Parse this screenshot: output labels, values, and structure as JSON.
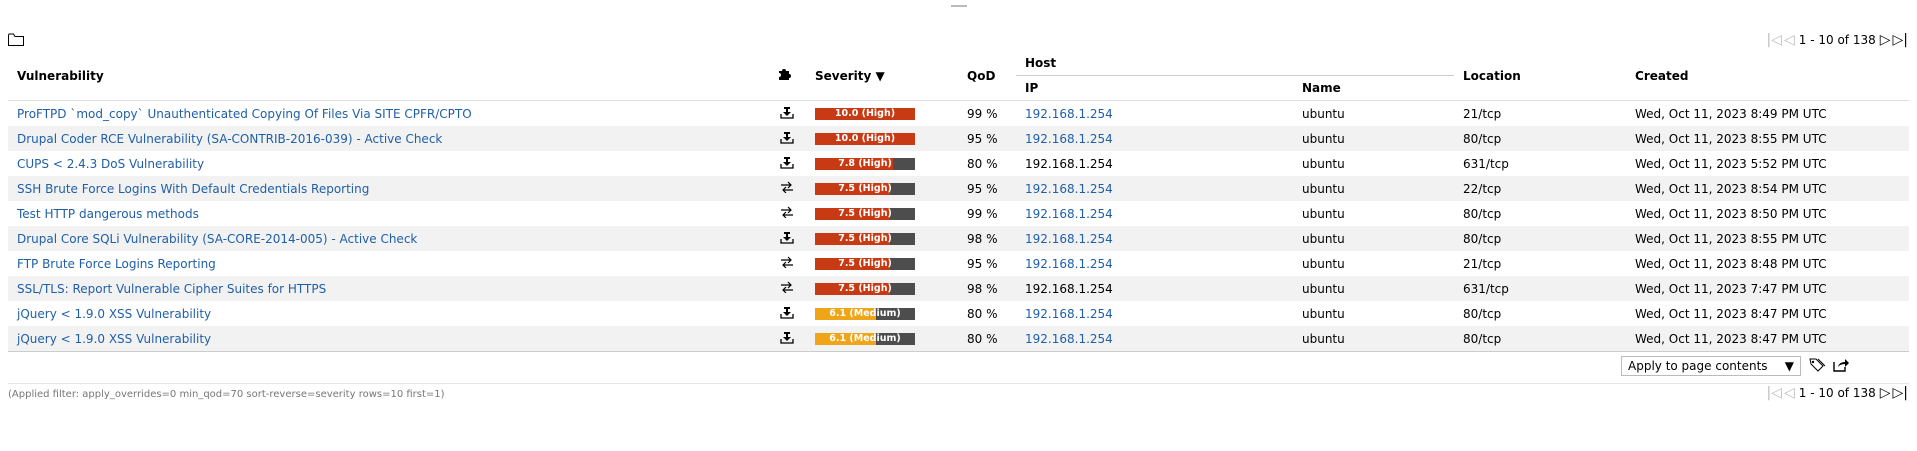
{
  "pager": {
    "text": "1 - 10 of 138"
  },
  "columns": {
    "vulnerability": "Vulnerability",
    "severity": "Severity ▼",
    "qod": "QoD",
    "host": "Host",
    "ip": "IP",
    "name": "Name",
    "location": "Location",
    "created": "Created"
  },
  "colors": {
    "high": "#c83a14",
    "medium": "#f0a519",
    "bar_bg": "#4d4d4d",
    "link": "#1f5fa8"
  },
  "rows": [
    {
      "vuln": "ProFTPD `mod_copy` Unauthenticated Copying Of Files Via SITE CPFR/CPTO",
      "icon": "download-install-icon",
      "severity": "10.0 (High)",
      "score": 10.0,
      "level": "high",
      "qod": "99 %",
      "ip": "192.168.1.254",
      "ip_link": true,
      "name": "ubuntu",
      "location": "21/tcp",
      "created": "Wed, Oct 11, 2023 8:49 PM UTC"
    },
    {
      "vuln": "Drupal Coder RCE Vulnerability (SA-CONTRIB-2016-039) - Active Check",
      "icon": "download-install-icon",
      "severity": "10.0 (High)",
      "score": 10.0,
      "level": "high",
      "qod": "95 %",
      "ip": "192.168.1.254",
      "ip_link": true,
      "name": "ubuntu",
      "location": "80/tcp",
      "created": "Wed, Oct 11, 2023 8:55 PM UTC"
    },
    {
      "vuln": "CUPS < 2.4.3 DoS Vulnerability",
      "icon": "download-install-icon",
      "severity": "7.8 (High)",
      "score": 7.8,
      "level": "high",
      "qod": "80 %",
      "ip": "192.168.1.254",
      "ip_link": false,
      "name": "ubuntu",
      "location": "631/tcp",
      "created": "Wed, Oct 11, 2023 5:52 PM UTC"
    },
    {
      "vuln": "SSH Brute Force Logins With Default Credentials Reporting",
      "icon": "workaround-arrows-icon",
      "severity": "7.5 (High)",
      "score": 7.5,
      "level": "high",
      "qod": "95 %",
      "ip": "192.168.1.254",
      "ip_link": true,
      "name": "ubuntu",
      "location": "22/tcp",
      "created": "Wed, Oct 11, 2023 8:54 PM UTC"
    },
    {
      "vuln": "Test HTTP dangerous methods",
      "icon": "workaround-arrows-icon",
      "severity": "7.5 (High)",
      "score": 7.5,
      "level": "high",
      "qod": "99 %",
      "ip": "192.168.1.254",
      "ip_link": true,
      "name": "ubuntu",
      "location": "80/tcp",
      "created": "Wed, Oct 11, 2023 8:50 PM UTC"
    },
    {
      "vuln": "Drupal Core SQLi Vulnerability (SA-CORE-2014-005) - Active Check",
      "icon": "download-install-icon",
      "severity": "7.5 (High)",
      "score": 7.5,
      "level": "high",
      "qod": "98 %",
      "ip": "192.168.1.254",
      "ip_link": true,
      "name": "ubuntu",
      "location": "80/tcp",
      "created": "Wed, Oct 11, 2023 8:55 PM UTC"
    },
    {
      "vuln": "FTP Brute Force Logins Reporting",
      "icon": "workaround-arrows-icon",
      "severity": "7.5 (High)",
      "score": 7.5,
      "level": "high",
      "qod": "95 %",
      "ip": "192.168.1.254",
      "ip_link": true,
      "name": "ubuntu",
      "location": "21/tcp",
      "created": "Wed, Oct 11, 2023 8:48 PM UTC"
    },
    {
      "vuln": "SSL/TLS: Report Vulnerable Cipher Suites for HTTPS",
      "icon": "workaround-arrows-icon",
      "severity": "7.5 (High)",
      "score": 7.5,
      "level": "high",
      "qod": "98 %",
      "ip": "192.168.1.254",
      "ip_link": false,
      "name": "ubuntu",
      "location": "631/tcp",
      "created": "Wed, Oct 11, 2023 7:47 PM UTC"
    },
    {
      "vuln": "jQuery < 1.9.0 XSS Vulnerability",
      "icon": "download-install-icon",
      "severity": "6.1 (Medium)",
      "score": 6.1,
      "level": "medium",
      "qod": "80 %",
      "ip": "192.168.1.254",
      "ip_link": true,
      "name": "ubuntu",
      "location": "80/tcp",
      "created": "Wed, Oct 11, 2023 8:47 PM UTC"
    },
    {
      "vuln": "jQuery < 1.9.0 XSS Vulnerability",
      "icon": "download-install-icon",
      "severity": "6.1 (Medium)",
      "score": 6.1,
      "level": "medium",
      "qod": "80 %",
      "ip": "192.168.1.254",
      "ip_link": true,
      "name": "ubuntu",
      "location": "80/tcp",
      "created": "Wed, Oct 11, 2023 8:47 PM UTC"
    }
  ],
  "bulk_action": {
    "selected": "Apply to page contents"
  },
  "applied_filter": "(Applied filter: apply_overrides=0 min_qod=70 sort-reverse=severity rows=10 first=1)"
}
